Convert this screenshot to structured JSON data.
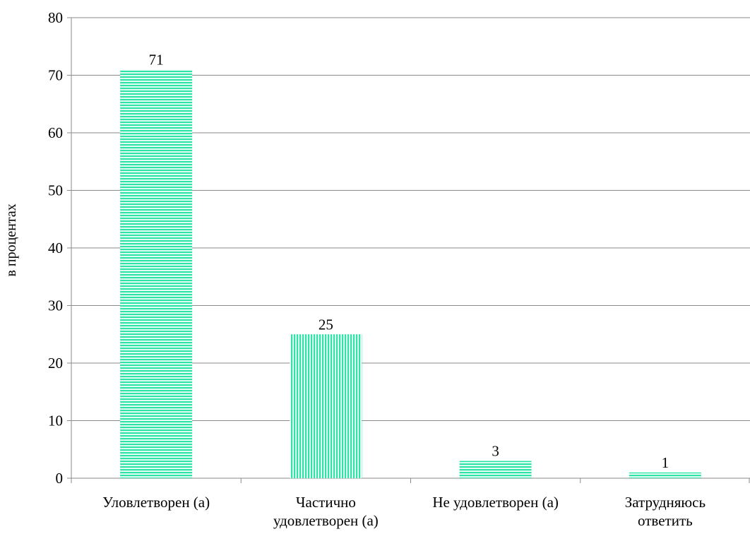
{
  "chart_data": {
    "type": "bar",
    "title": "",
    "xlabel": "",
    "ylabel": "в процентах",
    "ylim": [
      0,
      80
    ],
    "yticks": [
      0,
      10,
      20,
      30,
      40,
      50,
      60,
      70,
      80
    ],
    "grid": true,
    "bar_color": "#2de3a6",
    "categories": [
      [
        "Уловлетворен (а)"
      ],
      [
        "Частично",
        "удовлетворен (а)"
      ],
      [
        "Не удовлетворен (а)"
      ],
      [
        "Затрудняюсь",
        "ответить"
      ]
    ],
    "values": [
      71,
      25,
      3,
      1
    ],
    "data_labels": [
      "71",
      "25",
      "3",
      "1"
    ],
    "bar_patterns": [
      "horizontal",
      "vertical",
      "horizontal",
      "horizontal"
    ]
  }
}
